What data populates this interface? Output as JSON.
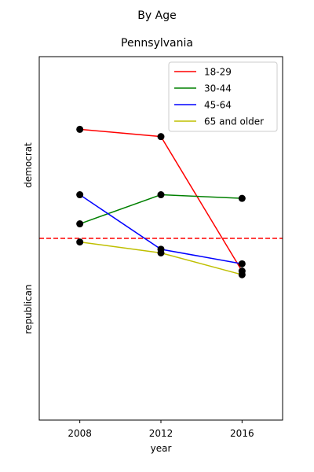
{
  "chart_data": {
    "type": "line",
    "suptitle": "By Age",
    "title": "Pennsylvania",
    "xlabel": "year",
    "ylabel_top": "democrat",
    "ylabel_bottom": "republican",
    "x": [
      2008,
      2012,
      2016
    ],
    "xlim": [
      2006,
      2018
    ],
    "ylim": [
      -50,
      50
    ],
    "reference_line": {
      "value": 0,
      "color": "#ff0000",
      "style": "dashed"
    },
    "marker_color": "#000000",
    "legend_position": "top-right",
    "series": [
      {
        "name": "18-29",
        "color": "#ff0000",
        "values": [
          30,
          28,
          -9
        ]
      },
      {
        "name": "30-44",
        "color": "#008000",
        "values": [
          4,
          12,
          11
        ]
      },
      {
        "name": "45-64",
        "color": "#0000ff",
        "values": [
          12,
          -3,
          -7
        ]
      },
      {
        "name": "65 and older",
        "color": "#bfbf00",
        "values": [
          -1,
          -4,
          -10
        ]
      }
    ]
  }
}
